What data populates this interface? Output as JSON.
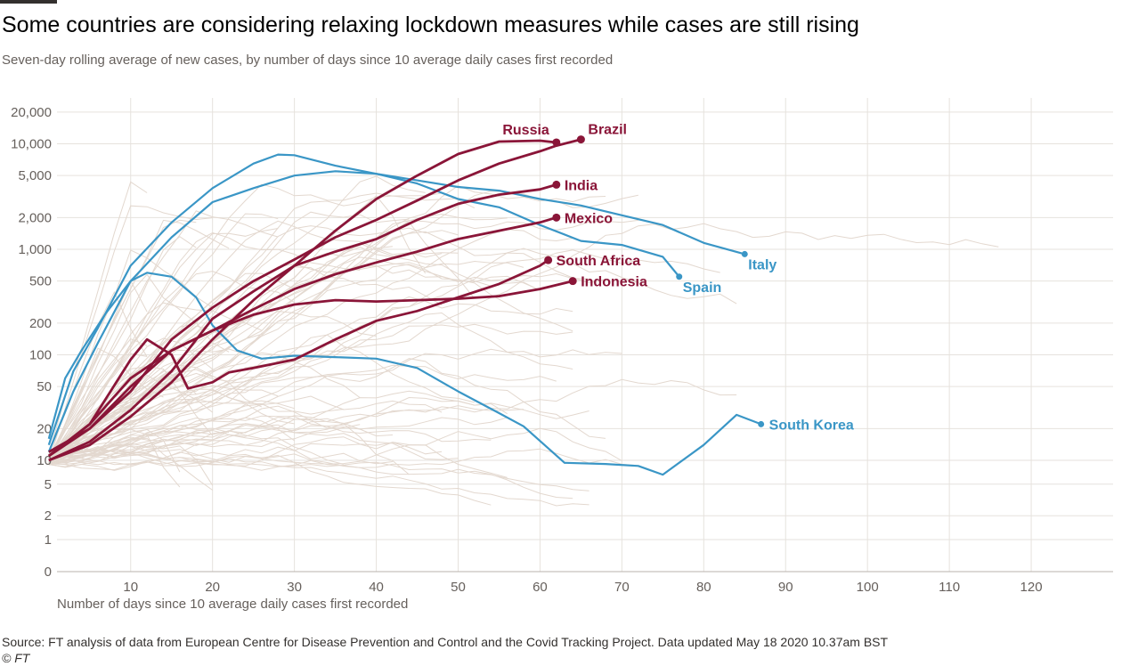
{
  "header": {
    "title": "Some countries are considering relaxing lockdown measures while cases are still rising",
    "subtitle": "Seven-day rolling average of new cases, by number of days since 10 average daily cases first recorded"
  },
  "footer": {
    "source": "Source: FT analysis of data from European Centre for Disease Prevention and Control and the Covid Tracking Project. Data updated May 18 2020 10.37am BST",
    "credit": "© FT"
  },
  "colors": {
    "highlight": "#8a1538",
    "reference": "#3a96c6",
    "background_lines": "#e3d8cf",
    "grid": "#e6e2dd",
    "text": "#33302e",
    "muted_text": "#66605c"
  },
  "chart_data": {
    "type": "line",
    "title": "Some countries are considering relaxing lockdown measures while cases are still rising",
    "subtitle": "Seven-day rolling average of new cases, by number of days since 10 average daily cases first recorded",
    "xlabel": "Number of days since 10 average daily cases first recorded",
    "ylabel": "",
    "y_scale": "log",
    "xlim": [
      0,
      130
    ],
    "ylim": [
      0,
      20000
    ],
    "x_ticks": [
      10,
      20,
      30,
      40,
      50,
      60,
      70,
      80,
      90,
      100,
      110,
      120
    ],
    "x_tick_labels": [
      "10",
      "20",
      "30",
      "40",
      "50",
      "60",
      "70",
      "80",
      "90",
      "100",
      "110",
      "120"
    ],
    "y_ticks": [
      0,
      1,
      2,
      5,
      10,
      20,
      50,
      100,
      200,
      500,
      1000,
      2000,
      5000,
      10000,
      20000
    ],
    "y_tick_labels": [
      "0",
      "1",
      "2",
      "5",
      "10",
      "20",
      "50",
      "100",
      "200",
      "500",
      "1,000",
      "2,000",
      "5,000",
      "10,000",
      "20,000"
    ],
    "grid": true,
    "legend": "inline-labels",
    "highlighted_series": [
      {
        "name": "Russia",
        "color": "#8a1538",
        "label_pos": "top-left",
        "x": [
          0,
          5,
          10,
          15,
          20,
          25,
          30,
          35,
          40,
          45,
          50,
          55,
          60,
          62
        ],
        "y": [
          10,
          14,
          26,
          55,
          140,
          330,
          700,
          1500,
          3000,
          5000,
          8000,
          10500,
          10700,
          10300
        ]
      },
      {
        "name": "Brazil",
        "color": "#8a1538",
        "label_pos": "top-right",
        "x": [
          0,
          5,
          10,
          15,
          20,
          25,
          30,
          35,
          40,
          45,
          50,
          55,
          60,
          62,
          65
        ],
        "y": [
          12,
          20,
          45,
          140,
          280,
          500,
          800,
          1300,
          1900,
          2900,
          4500,
          6500,
          8500,
          9600,
          11000
        ]
      },
      {
        "name": "India",
        "color": "#8a1538",
        "label_pos": "right",
        "x": [
          0,
          5,
          10,
          15,
          20,
          25,
          30,
          35,
          40,
          45,
          50,
          55,
          60,
          62
        ],
        "y": [
          10,
          15,
          30,
          70,
          220,
          400,
          700,
          950,
          1250,
          1900,
          2700,
          3300,
          3700,
          4100
        ]
      },
      {
        "name": "Mexico",
        "color": "#8a1538",
        "label_pos": "right",
        "x": [
          0,
          5,
          10,
          15,
          20,
          25,
          30,
          35,
          40,
          45,
          50,
          55,
          60,
          62
        ],
        "y": [
          11,
          20,
          50,
          110,
          170,
          270,
          420,
          580,
          750,
          950,
          1250,
          1500,
          1800,
          2000
        ]
      },
      {
        "name": "South Africa",
        "color": "#8a1538",
        "label_pos": "right",
        "x": [
          0,
          5,
          10,
          12,
          15,
          17,
          20,
          22,
          25,
          30,
          35,
          40,
          45,
          50,
          55,
          60,
          61
        ],
        "y": [
          11,
          22,
          90,
          140,
          100,
          48,
          55,
          68,
          75,
          90,
          140,
          210,
          260,
          350,
          470,
          700,
          790
        ]
      },
      {
        "name": "Indonesia",
        "color": "#8a1538",
        "label_pos": "right",
        "x": [
          0,
          5,
          10,
          15,
          20,
          25,
          30,
          35,
          40,
          45,
          50,
          55,
          60,
          64
        ],
        "y": [
          11,
          22,
          60,
          110,
          170,
          240,
          300,
          330,
          320,
          330,
          340,
          360,
          420,
          500
        ]
      },
      {
        "name": "Italy",
        "color": "#3a96c6",
        "label_pos": "bottom-right",
        "x": [
          0,
          3,
          6,
          10,
          15,
          20,
          25,
          28,
          30,
          35,
          40,
          45,
          50,
          55,
          60,
          65,
          70,
          75,
          80,
          85
        ],
        "y": [
          14,
          70,
          180,
          700,
          1800,
          3800,
          6500,
          7900,
          7800,
          6200,
          5200,
          4500,
          3900,
          3600,
          3000,
          2600,
          2100,
          1700,
          1150,
          900
        ]
      },
      {
        "name": "Spain",
        "color": "#3a96c6",
        "label_pos": "bottom-right",
        "x": [
          0,
          3,
          6,
          10,
          15,
          20,
          25,
          30,
          35,
          40,
          45,
          50,
          55,
          60,
          65,
          70,
          75,
          77
        ],
        "y": [
          12,
          45,
          130,
          500,
          1300,
          2800,
          3800,
          5000,
          5500,
          5200,
          4200,
          3000,
          2500,
          1700,
          1200,
          1100,
          850,
          550
        ]
      },
      {
        "name": "South Korea",
        "color": "#3a96c6",
        "label_pos": "right",
        "x": [
          0,
          2,
          4,
          7,
          10,
          12,
          15,
          18,
          20,
          23,
          26,
          30,
          35,
          40,
          45,
          50,
          55,
          58,
          63,
          68,
          72,
          75,
          80,
          84,
          87
        ],
        "y": [
          16,
          60,
          110,
          250,
          500,
          600,
          550,
          350,
          190,
          110,
          92,
          98,
          95,
          92,
          75,
          45,
          28,
          21,
          9.3,
          9,
          8.5,
          6.6,
          14,
          27,
          22
        ]
      }
    ]
  }
}
